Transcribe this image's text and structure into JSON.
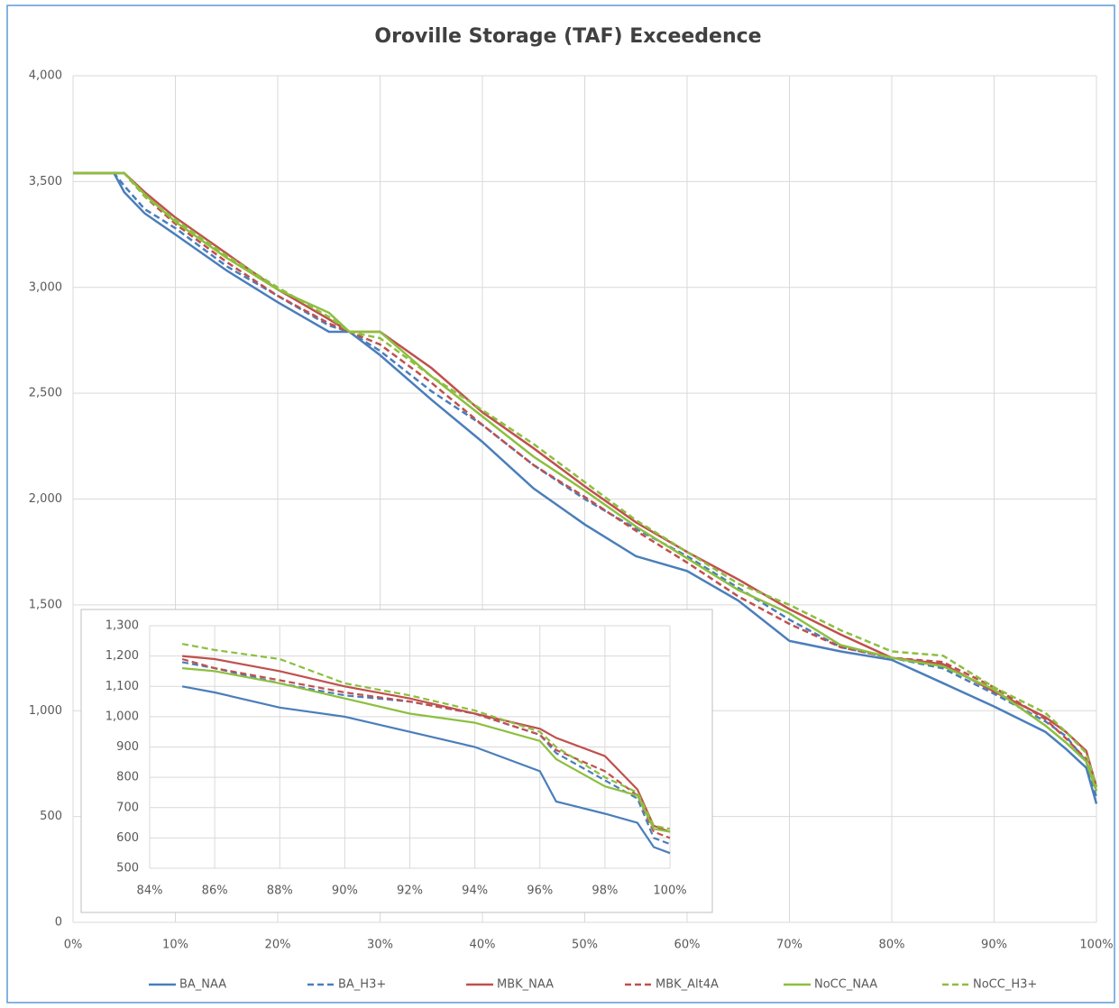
{
  "chart_data": [
    {
      "type": "line",
      "title": "Oroville Storage (TAF) Exceedence",
      "x": [
        0,
        4,
        5,
        7,
        10,
        15,
        20,
        25,
        27,
        30,
        35,
        40,
        45,
        50,
        55,
        60,
        65,
        70,
        75,
        80,
        85,
        90,
        95,
        97,
        99,
        100
      ],
      "xlim": [
        0,
        100
      ],
      "xticks": [
        {
          "value": 0,
          "label": "0%"
        },
        {
          "value": 10,
          "label": "10%"
        },
        {
          "value": 20,
          "label": "20%"
        },
        {
          "value": 30,
          "label": "30%"
        },
        {
          "value": 40,
          "label": "40%"
        },
        {
          "value": 50,
          "label": "50%"
        },
        {
          "value": 60,
          "label": "60%"
        },
        {
          "value": 70,
          "label": "70%"
        },
        {
          "value": 80,
          "label": "80%"
        },
        {
          "value": 90,
          "label": "90%"
        },
        {
          "value": 100,
          "label": "100%"
        }
      ],
      "ylim": [
        0,
        4000
      ],
      "yticks": [
        0,
        500,
        {
          "value": 1000,
          "label": "1,000"
        },
        {
          "value": 1500,
          "label": "1,500"
        },
        {
          "value": 2000,
          "label": "2,000"
        },
        {
          "value": 2500,
          "label": "2,500"
        },
        {
          "value": 3000,
          "label": "3,000"
        },
        {
          "value": 3500,
          "label": "3,500"
        },
        {
          "value": 4000,
          "label": "4,000"
        }
      ],
      "grid": true,
      "legend": "bottom",
      "series": [
        {
          "name": "BA_NAA",
          "color": "#4a7ebb",
          "dashed": false,
          "values": [
            3540,
            3540,
            3450,
            3350,
            3250,
            3080,
            2930,
            2790,
            2790,
            2680,
            2470,
            2270,
            2050,
            1880,
            1730,
            1660,
            1520,
            1330,
            1280,
            1240,
            1130,
            1020,
            900,
            820,
            730,
            560
          ]
        },
        {
          "name": "BA_H3+",
          "color": "#4a7ebb",
          "dashed": true,
          "values": [
            3540,
            3540,
            3480,
            3370,
            3280,
            3100,
            2960,
            2820,
            2790,
            2700,
            2510,
            2350,
            2160,
            2000,
            1860,
            1730,
            1580,
            1430,
            1300,
            1250,
            1200,
            1080,
            950,
            880,
            760,
            590
          ]
        },
        {
          "name": "MBK_NAA",
          "color": "#c0504d",
          "dashed": false,
          "values": [
            3540,
            3540,
            3540,
            3450,
            3330,
            3160,
            2990,
            2850,
            2790,
            2790,
            2620,
            2410,
            2240,
            2060,
            1890,
            1750,
            1620,
            1480,
            1360,
            1250,
            1220,
            1090,
            970,
            900,
            810,
            640
          ]
        },
        {
          "name": "MBK_Alt4A",
          "color": "#c0504d",
          "dashed": true,
          "values": [
            3540,
            3540,
            3540,
            3430,
            3300,
            3120,
            2960,
            2830,
            2790,
            2730,
            2550,
            2350,
            2160,
            2010,
            1850,
            1700,
            1540,
            1410,
            1300,
            1250,
            1230,
            1110,
            960,
            870,
            770,
            620
          ]
        },
        {
          "name": "NoCC_NAA",
          "color": "#8cbf3f",
          "dashed": false,
          "values": [
            3540,
            3540,
            3540,
            3440,
            3310,
            3140,
            2990,
            2880,
            2790,
            2790,
            2580,
            2390,
            2200,
            2040,
            1870,
            1720,
            1570,
            1460,
            1310,
            1250,
            1210,
            1100,
            930,
            850,
            760,
            620
          ]
        },
        {
          "name": "NoCC_H3+",
          "color": "#8cbf3f",
          "dashed": true,
          "values": [
            3540,
            3540,
            3540,
            3430,
            3320,
            3150,
            3000,
            2860,
            2790,
            2760,
            2580,
            2420,
            2260,
            2080,
            1900,
            1750,
            1600,
            1500,
            1380,
            1280,
            1260,
            1110,
            990,
            900,
            800,
            640
          ]
        }
      ]
    },
    {
      "type": "line",
      "x": [
        85,
        86,
        88,
        90,
        92,
        94,
        96,
        96.5,
        98,
        99,
        99.5,
        100
      ],
      "xlim": [
        84,
        100
      ],
      "xticks": [
        {
          "value": 84,
          "label": "84%"
        },
        {
          "value": 86,
          "label": "86%"
        },
        {
          "value": 88,
          "label": "88%"
        },
        {
          "value": 90,
          "label": "90%"
        },
        {
          "value": 92,
          "label": "92%"
        },
        {
          "value": 94,
          "label": "94%"
        },
        {
          "value": 96,
          "label": "96%"
        },
        {
          "value": 98,
          "label": "98%"
        },
        {
          "value": 100,
          "label": "100%"
        }
      ],
      "ylim": [
        500,
        1300
      ],
      "yticks": [
        500,
        600,
        700,
        800,
        900,
        {
          "value": 1000,
          "label": "1,000"
        },
        {
          "value": 1100,
          "label": "1,100"
        },
        {
          "value": 1200,
          "label": "1,200"
        },
        {
          "value": 1300,
          "label": "1,300"
        }
      ],
      "grid": true,
      "series": [
        {
          "color": "#4a7ebb",
          "dashed": false,
          "values": [
            1100,
            1080,
            1030,
            1000,
            950,
            900,
            820,
            720,
            680,
            650,
            570,
            550
          ]
        },
        {
          "color": "#4a7ebb",
          "dashed": true,
          "values": [
            1180,
            1160,
            1110,
            1070,
            1050,
            1010,
            940,
            880,
            790,
            730,
            600,
            580
          ]
        },
        {
          "color": "#c0504d",
          "dashed": false,
          "values": [
            1200,
            1190,
            1150,
            1100,
            1060,
            1010,
            960,
            930,
            870,
            760,
            640,
            620
          ]
        },
        {
          "color": "#c0504d",
          "dashed": true,
          "values": [
            1190,
            1160,
            1120,
            1080,
            1050,
            1010,
            940,
            890,
            820,
            740,
            620,
            600
          ]
        },
        {
          "color": "#8cbf3f",
          "dashed": false,
          "values": [
            1160,
            1150,
            1110,
            1060,
            1010,
            980,
            920,
            860,
            770,
            740,
            630,
            620
          ]
        },
        {
          "color": "#8cbf3f",
          "dashed": true,
          "values": [
            1240,
            1220,
            1190,
            1110,
            1070,
            1020,
            950,
            900,
            800,
            750,
            640,
            630
          ]
        }
      ]
    }
  ]
}
